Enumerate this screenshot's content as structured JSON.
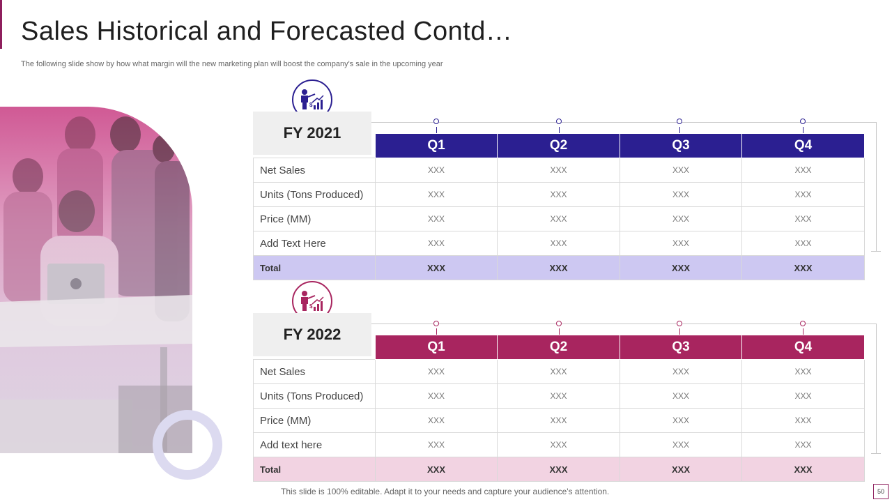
{
  "slide": {
    "title": "Sales Historical and Forecasted Contd…",
    "subtitle": "The following slide show by how what margin will the new marketing plan will boost the company's sale in the upcoming year",
    "footer": "This slide is 100% editable. Adapt it to your needs and capture your audience's attention.",
    "page_number": "50"
  },
  "colors": {
    "fy2021_header": "#2b1f91",
    "fy2021_total": "#cdc8f2",
    "fy2022_header": "#a8255f",
    "fy2022_total": "#f2d3e2",
    "accent": "#8e1f5d"
  },
  "photo": {
    "icon": "team-at-laptop-photo"
  },
  "tables": [
    {
      "fy_label": "FY 2021",
      "icon": "presenter-chart-icon",
      "quarters": [
        "Q1",
        "Q2",
        "Q3",
        "Q4"
      ],
      "rows": [
        {
          "label": "Net Sales",
          "values": [
            "XXX",
            "XXX",
            "XXX",
            "XXX"
          ]
        },
        {
          "label": "Units (Tons Produced)",
          "values": [
            "XXX",
            "XXX",
            "XXX",
            "XXX"
          ]
        },
        {
          "label": "Price (MM)",
          "values": [
            "XXX",
            "XXX",
            "XXX",
            "XXX"
          ]
        },
        {
          "label": "Add Text Here",
          "values": [
            "XXX",
            "XXX",
            "XXX",
            "XXX"
          ]
        }
      ],
      "total": {
        "label": "Total",
        "values": [
          "XXX",
          "XXX",
          "XXX",
          "XXX"
        ]
      }
    },
    {
      "fy_label": "FY 2022",
      "icon": "presenter-chart-icon",
      "quarters": [
        "Q1",
        "Q2",
        "Q3",
        "Q4"
      ],
      "rows": [
        {
          "label": "Net Sales",
          "values": [
            "XXX",
            "XXX",
            "XXX",
            "XXX"
          ]
        },
        {
          "label": "Units (Tons Produced)",
          "values": [
            "XXX",
            "XXX",
            "XXX",
            "XXX"
          ]
        },
        {
          "label": "Price (MM)",
          "values": [
            "XXX",
            "XXX",
            "XXX",
            "XXX"
          ]
        },
        {
          "label": "Add text here",
          "values": [
            "XXX",
            "XXX",
            "XXX",
            "XXX"
          ]
        }
      ],
      "total": {
        "label": "Total",
        "values": [
          "XXX",
          "XXX",
          "XXX",
          "XXX"
        ]
      }
    }
  ]
}
